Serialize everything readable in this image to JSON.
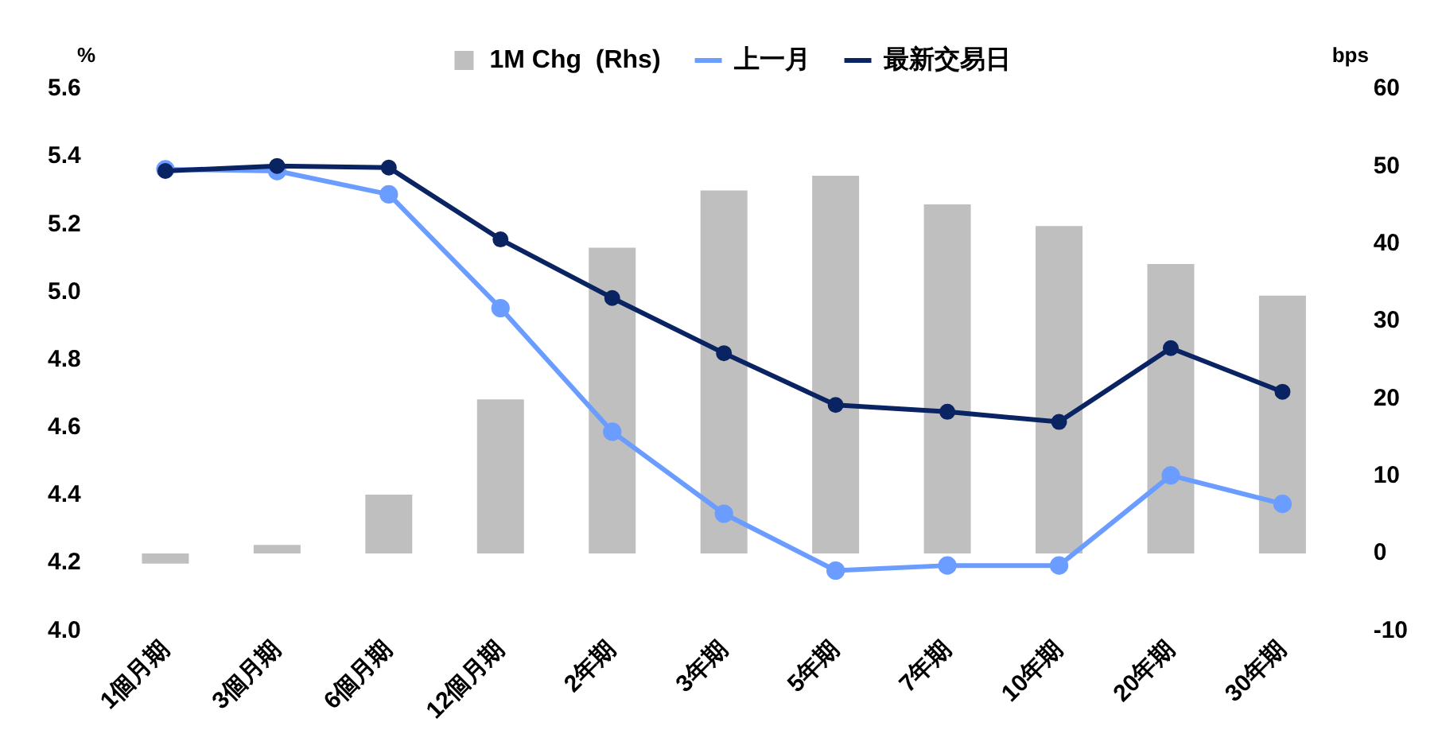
{
  "chart_data": {
    "type": "line",
    "ylabel": "%",
    "y2label": "bps",
    "categories": [
      "1個月期",
      "3個月期",
      "6個月期",
      "12個月期",
      "2年期",
      "3年期",
      "5年期",
      "7年期",
      "10年期",
      "20年期",
      "30年期"
    ],
    "series": [
      {
        "name": "1M Chg  (Rhs)",
        "type": "bar",
        "axis": "y2",
        "color": "#bfbfbf",
        "values": [
          -1.3,
          1.1,
          7.6,
          19.9,
          39.5,
          46.9,
          48.8,
          45.1,
          42.3,
          37.4,
          33.3
        ]
      },
      {
        "name": "上一月",
        "color": "#6b9cff",
        "values": [
          5.363,
          5.358,
          5.289,
          4.953,
          4.588,
          4.346,
          4.178,
          4.193,
          4.193,
          4.459,
          4.375
        ]
      },
      {
        "name": "最新交易日",
        "color": "#0a2463",
        "values": [
          5.358,
          5.373,
          5.368,
          5.156,
          4.983,
          4.82,
          4.667,
          4.647,
          4.617,
          4.835,
          4.706
        ]
      }
    ],
    "ylim": [
      4.0,
      5.6
    ],
    "yticks": [
      {
        "value": 4.0,
        "label": "4.0"
      },
      {
        "value": 4.2,
        "label": "4.2"
      },
      {
        "value": 4.4,
        "label": "4.4"
      },
      {
        "value": 4.6,
        "label": "4.6"
      },
      {
        "value": 4.8,
        "label": "4.8"
      },
      {
        "value": 5.0,
        "label": "5.0"
      },
      {
        "value": 5.2,
        "label": "5.2"
      },
      {
        "value": 5.4,
        "label": "5.4"
      },
      {
        "value": 5.6,
        "label": "5.6"
      }
    ],
    "y2lim": [
      -10,
      60
    ],
    "y2ticks": [
      -10,
      0,
      10,
      20,
      30,
      40,
      50,
      60
    ],
    "grid": false,
    "legend": "top",
    "marker": "circle",
    "line_style": "solid"
  }
}
